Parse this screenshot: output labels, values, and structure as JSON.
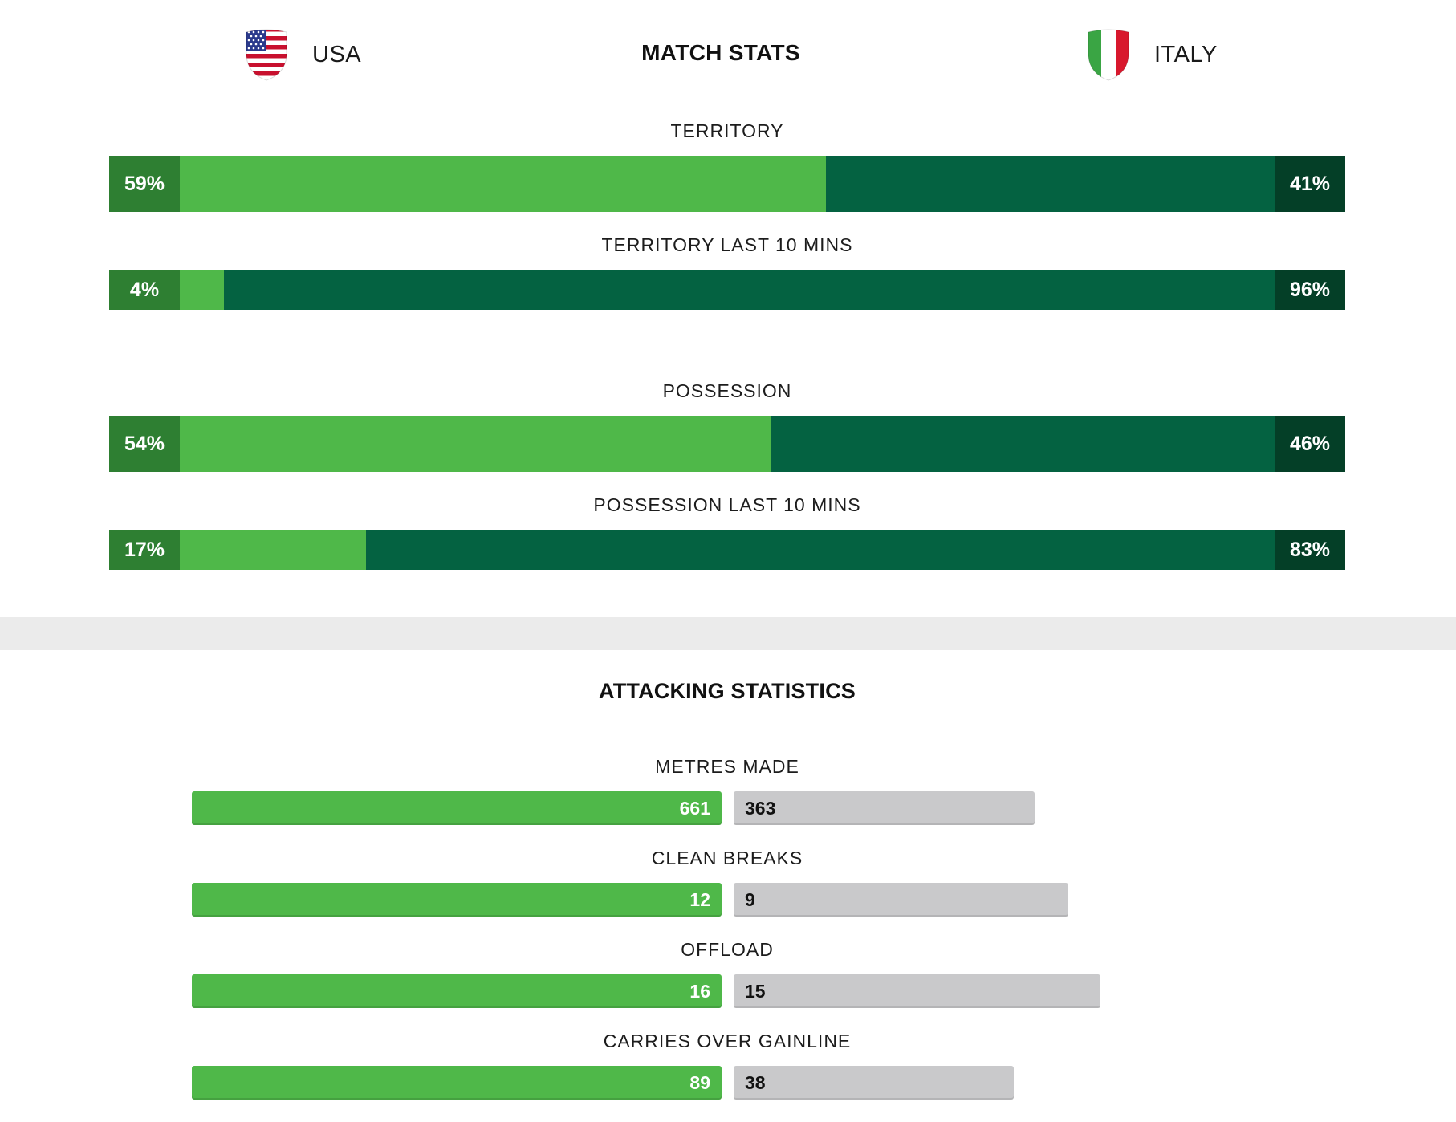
{
  "header": {
    "title": "MATCH STATS",
    "home_team": "USA",
    "away_team": "ITALY",
    "home_crest_icon": "usa-flag-crest-icon",
    "away_crest_icon": "italy-flag-crest-icon"
  },
  "colors": {
    "home_fill": "#4fb849",
    "home_cap": "#2e7f32",
    "away_fill": "#046241",
    "away_cap": "#043f27",
    "away_attack": "#c9c9cb"
  },
  "possession_stats": [
    {
      "label": "TERRITORY",
      "home": "59%",
      "away": "41%",
      "home_fraction": 0.59
    },
    {
      "label": "TERRITORY LAST 10 MINS",
      "home": "4%",
      "away": "96%",
      "home_fraction": 0.04
    },
    {
      "label": "POSSESSION",
      "home": "54%",
      "away": "46%",
      "home_fraction": 0.54
    },
    {
      "label": "POSSESSION LAST 10 MINS",
      "home": "17%",
      "away": "83%",
      "home_fraction": 0.17
    }
  ],
  "attacking": {
    "title": "ATTACKING STATISTICS",
    "stats": [
      {
        "label": "METRES MADE",
        "home": "661",
        "away": "363"
      },
      {
        "label": "CLEAN BREAKS",
        "home": "12",
        "away": "9"
      },
      {
        "label": "OFFLOAD",
        "home": "16",
        "away": "15"
      },
      {
        "label": "CARRIES OVER GAINLINE",
        "home": "89",
        "away": "38"
      }
    ]
  }
}
